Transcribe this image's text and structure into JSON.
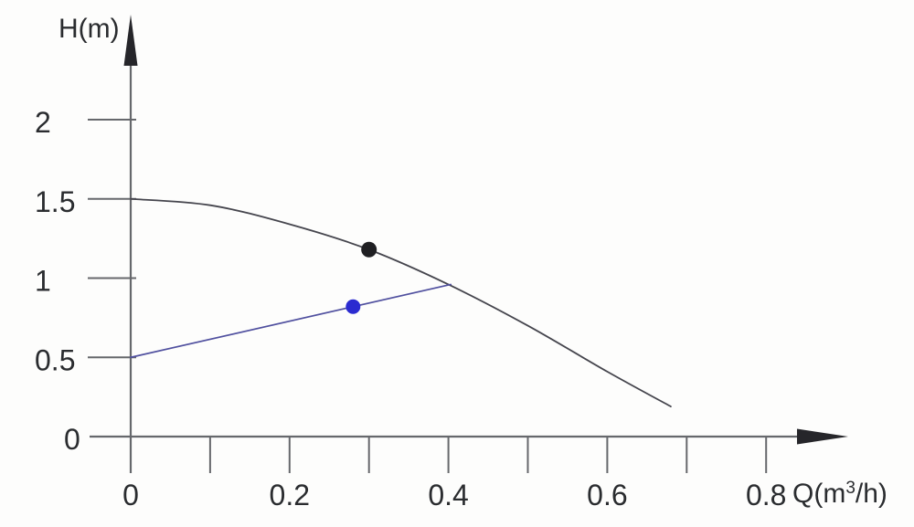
{
  "chart_data": {
    "type": "line",
    "title": "",
    "xlabel": "Q(m³/h)",
    "ylabel": "H(m)",
    "xlabel_parts": {
      "prefix": "Q(m",
      "sup": "3",
      "suffix": "/h)"
    },
    "x_axis": {
      "range": [
        0,
        0.8
      ],
      "tick_step": 0.1,
      "ticks": [
        0,
        0.1,
        0.2,
        0.3,
        0.4,
        0.5,
        0.6,
        0.7,
        0.8
      ],
      "tick_labels": [
        {
          "value": 0,
          "label": "0"
        },
        {
          "value": 0.2,
          "label": "0.2"
        },
        {
          "value": 0.4,
          "label": "0.4"
        },
        {
          "value": 0.6,
          "label": "0.6"
        },
        {
          "value": 0.8,
          "label": "0.8"
        }
      ]
    },
    "y_axis": {
      "range": [
        0,
        2
      ],
      "tick_step": 0.5,
      "ticks": [
        0.5,
        1,
        1.5,
        2
      ],
      "tick_labels": [
        {
          "value": 2,
          "label": "2"
        },
        {
          "value": 1.5,
          "label": "1.5"
        },
        {
          "value": 1,
          "label": "1"
        },
        {
          "value": 0.5,
          "label": "0.5"
        },
        {
          "value": 0,
          "label": "0"
        }
      ]
    },
    "grid": false,
    "legend": null,
    "series": [
      {
        "name": "pump-head-curve",
        "color": "#45454d",
        "width": 1.8,
        "smooth": true,
        "points": [
          [
            0,
            1.5
          ],
          [
            0.1,
            1.46
          ],
          [
            0.2,
            1.34
          ],
          [
            0.3,
            1.18
          ],
          [
            0.4,
            0.96
          ],
          [
            0.5,
            0.7
          ],
          [
            0.6,
            0.41
          ],
          [
            0.68,
            0.19
          ]
        ]
      },
      {
        "name": "system-line",
        "color": "#50509f",
        "width": 1.7,
        "smooth": false,
        "points": [
          [
            0,
            0.5
          ],
          [
            0.403,
            0.96
          ]
        ]
      }
    ],
    "markers": [
      {
        "name": "black-point",
        "color": "#1f1f22",
        "q": 0.3,
        "h": 1.18,
        "r": 8.5
      },
      {
        "name": "blue-point",
        "color": "#2b2bd0",
        "q": 0.28,
        "h": 0.82,
        "r": 8
      }
    ],
    "axis_color": "#66686c",
    "label_color": "#2a2c2f"
  }
}
